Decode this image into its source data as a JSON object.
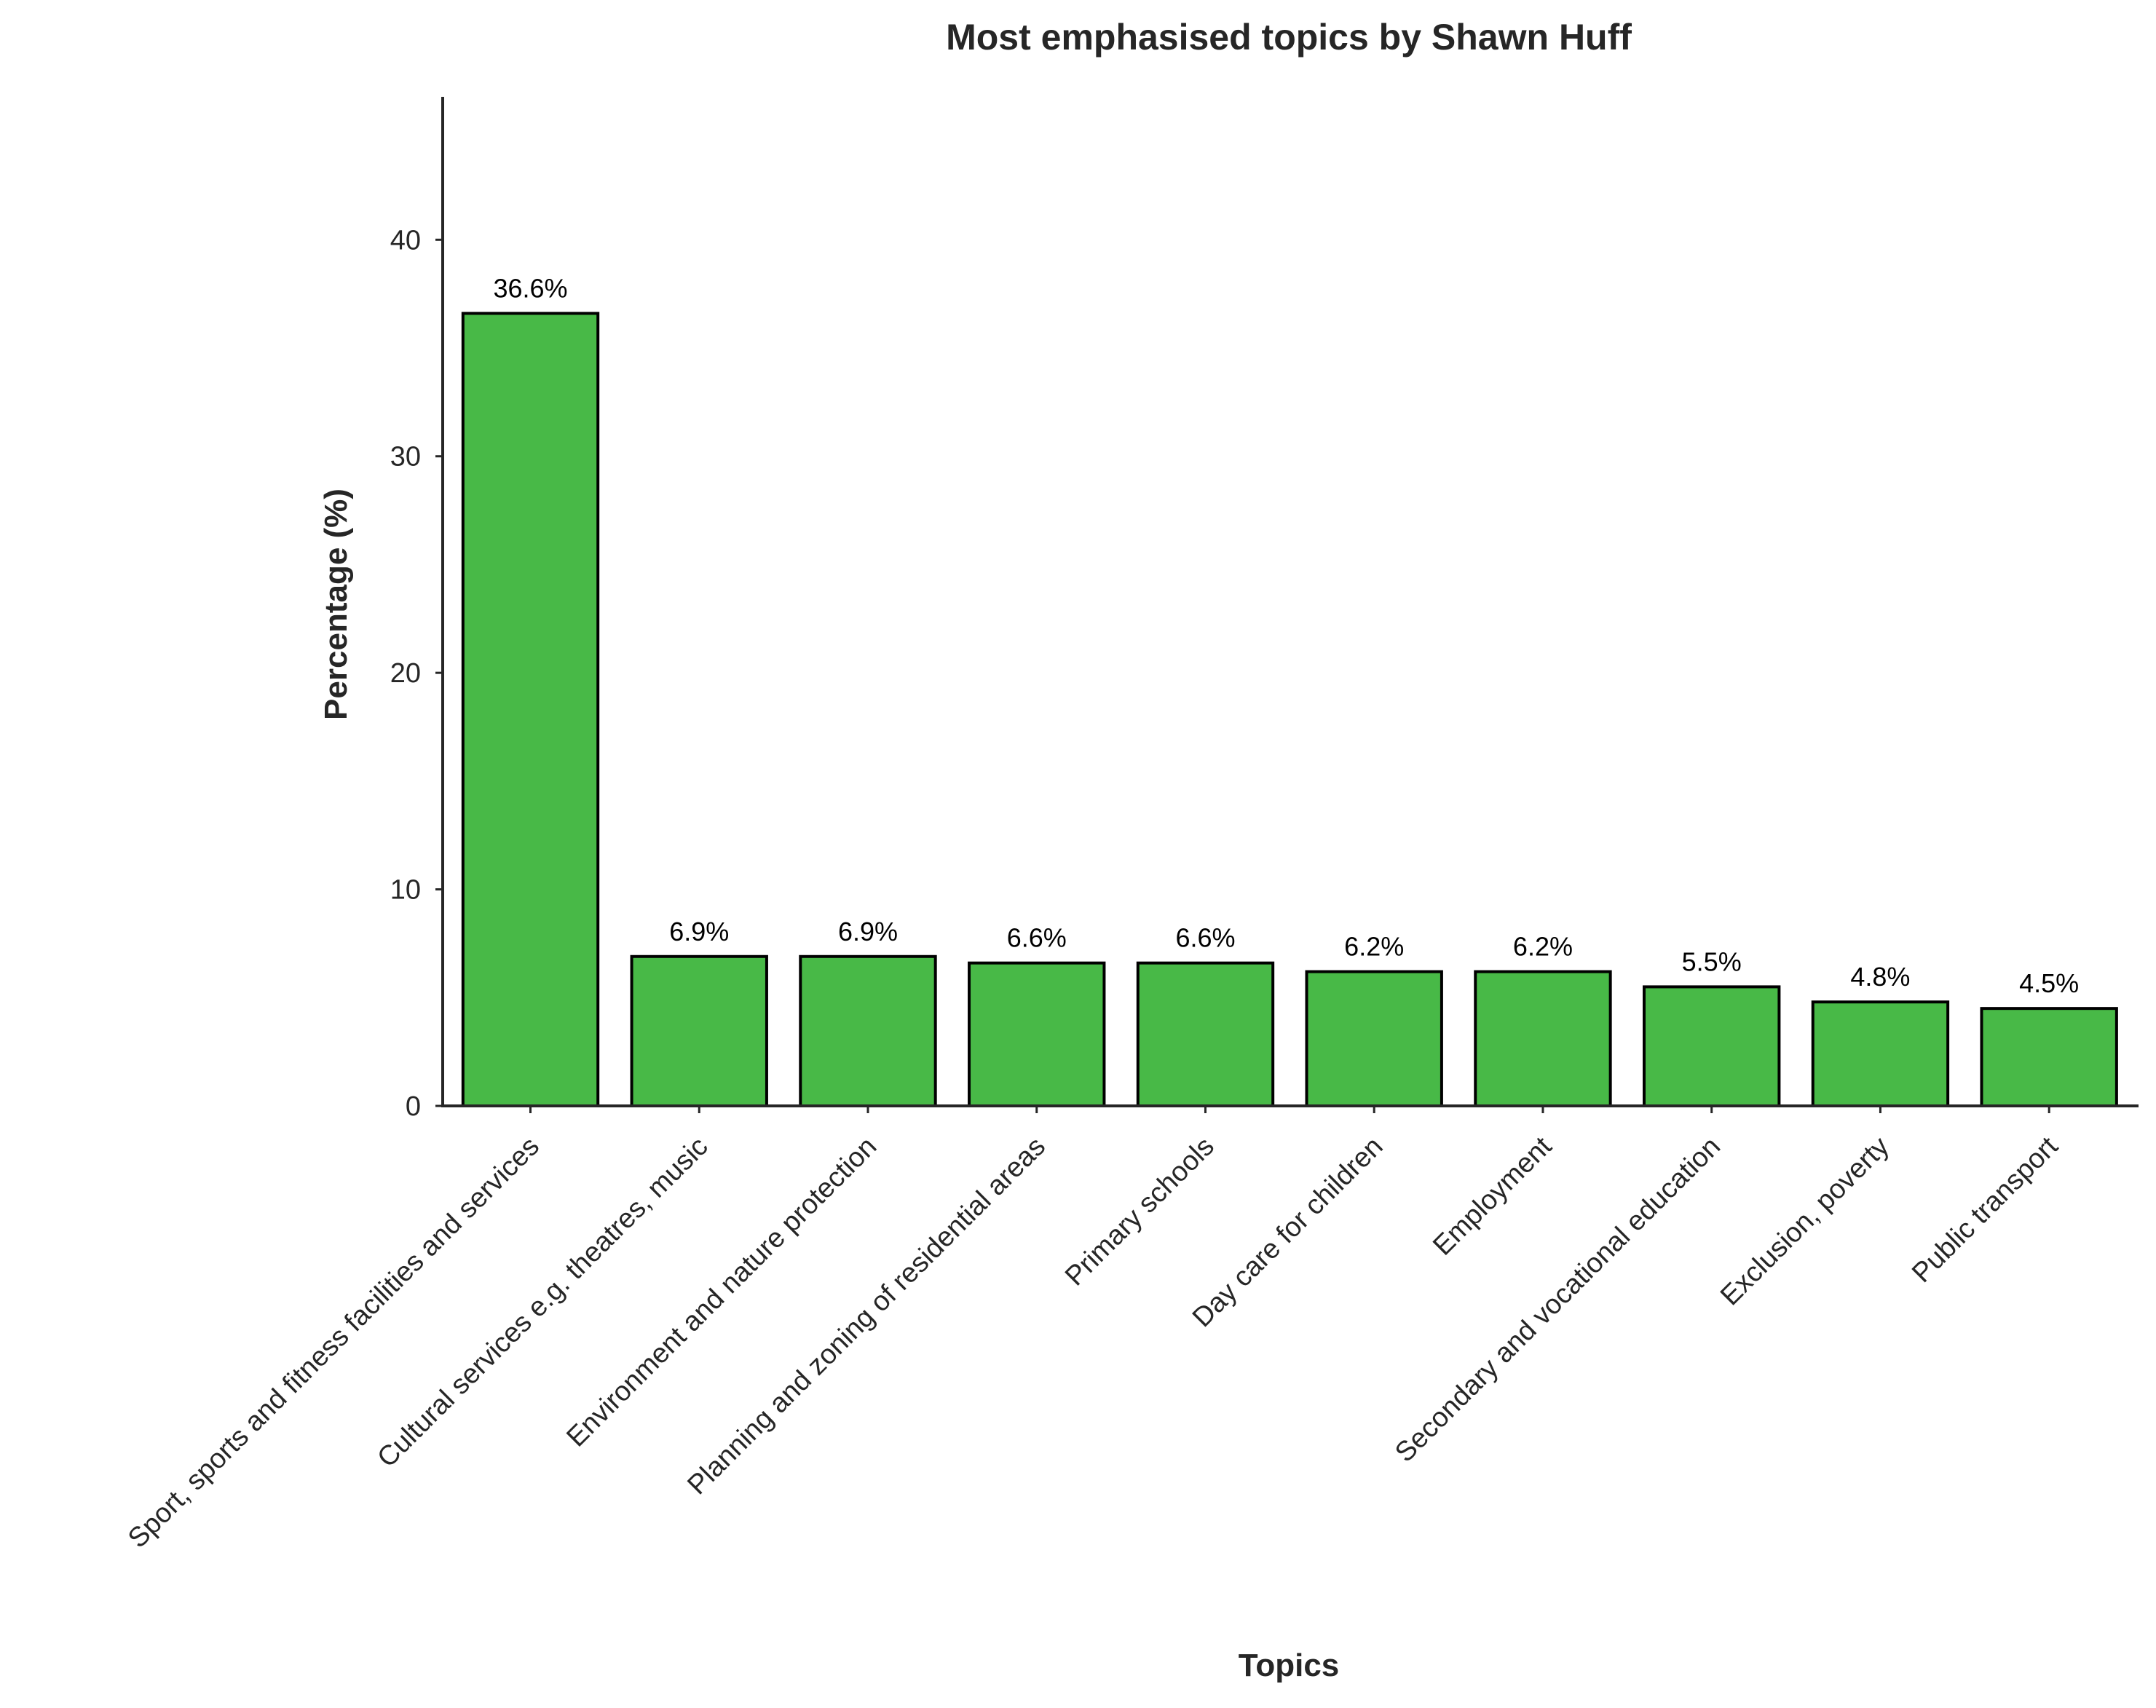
{
  "chart_data": {
    "type": "bar",
    "title": "Most emphasised topics by Shawn Huff",
    "xlabel": "Topics",
    "ylabel": "Percentage (%)",
    "categories": [
      "Sport, sports and fitness facilities and services",
      "Cultural services e.g. theatres, music",
      "Environment and nature protection",
      "Planning and zoning of residential areas",
      "Primary schools",
      "Day care for children",
      "Employment",
      "Secondary and vocational education",
      "Exclusion, poverty",
      "Public transport"
    ],
    "values": [
      36.6,
      6.9,
      6.9,
      6.6,
      6.6,
      6.2,
      6.2,
      5.5,
      4.8,
      4.5
    ],
    "value_labels": [
      "36.6%",
      "6.9%",
      "6.9%",
      "6.6%",
      "6.6%",
      "6.2%",
      "6.2%",
      "5.5%",
      "4.8%",
      "4.5%"
    ],
    "yticks": [
      0,
      10,
      20,
      30,
      40
    ],
    "ylim": [
      0,
      46.6
    ],
    "grid": false,
    "legend": "none",
    "bar_color": "#48B947",
    "bar_edge_color": "#000000",
    "text_color": "#262626"
  }
}
